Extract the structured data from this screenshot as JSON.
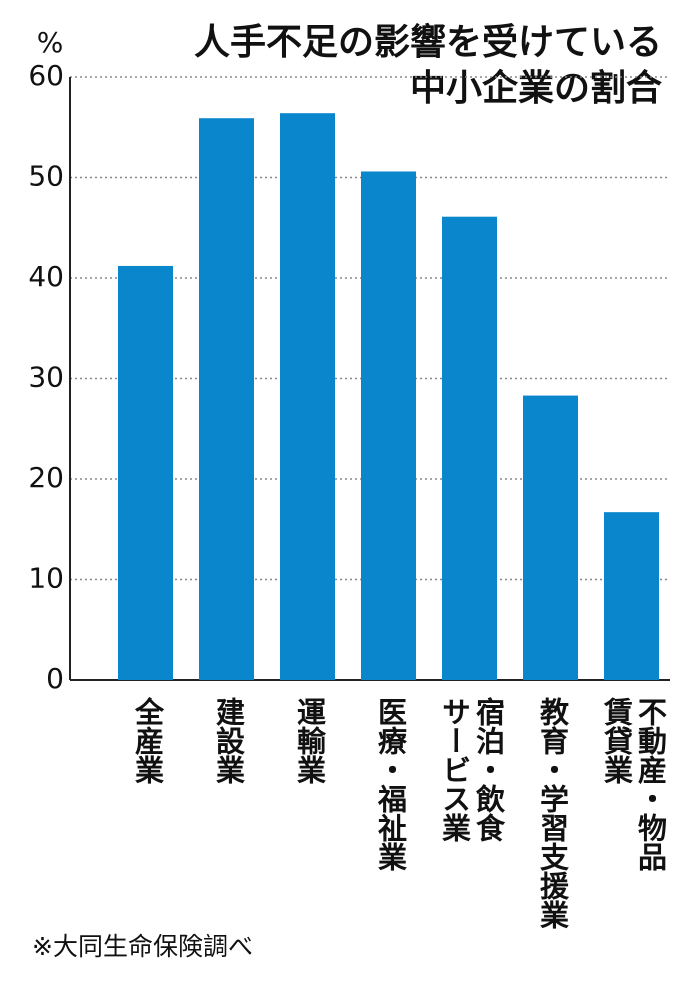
{
  "chart_data": {
    "type": "bar",
    "title": [
      "人手不足の影響を受けている",
      "中小企業の割合"
    ],
    "y_unit": "%",
    "source": "※大同生命保険調べ",
    "categories": [
      [
        "全産業"
      ],
      [
        "建設業"
      ],
      [
        "運輸業"
      ],
      [
        "医療・福祉業"
      ],
      [
        "宿泊・飲食",
        "サービス業"
      ],
      [
        "教育・学習支援業"
      ],
      [
        "不動産・物品",
        "賃貸業"
      ]
    ],
    "values": [
      41.2,
      55.9,
      56.4,
      50.6,
      46.1,
      28.3,
      16.7
    ],
    "color": "#0a86cd",
    "ylim": [
      0,
      60
    ],
    "yticks": [
      0,
      10,
      20,
      30,
      40,
      50,
      60
    ],
    "grid": true
  }
}
